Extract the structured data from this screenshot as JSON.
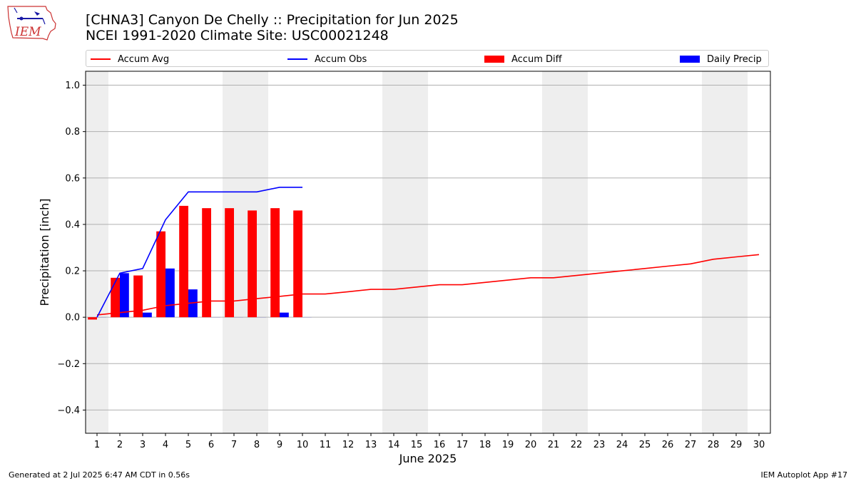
{
  "header": {
    "logo_text": "IEM",
    "title_line1": "[CHNA3] Canyon De Chelly :: Precipitation for Jun 2025",
    "title_line2": "NCEI 1991-2020 Climate Site: USC00021248"
  },
  "legend": {
    "accum_avg": "Accum Avg",
    "accum_obs": "Accum Obs",
    "accum_diff": "Accum Diff",
    "daily_precip": "Daily Precip"
  },
  "footer": {
    "generated": "Generated at 2 Jul 2025 6:47 AM CDT in 0.56s",
    "app": "IEM Autoplot App #17"
  },
  "colors": {
    "accum_avg": "#ff0000",
    "accum_obs": "#0000ff",
    "accum_diff": "#ff0000",
    "daily_precip": "#0000ff",
    "weekend_shade": "#eeeeee",
    "grid": "#b0b0b0"
  },
  "chart_data": {
    "type": "bar",
    "title": "[CHNA3] Canyon De Chelly :: Precipitation for Jun 2025",
    "subtitle": "NCEI 1991-2020 Climate Site: USC00021248",
    "xlabel": "June 2025",
    "ylabel": "Precipitation [inch]",
    "ylim": [
      -0.5,
      1.06
    ],
    "xlim": [
      0.5,
      30.5
    ],
    "yticks": [
      -0.4,
      -0.2,
      0.0,
      0.2,
      0.4,
      0.6,
      0.8,
      1.0
    ],
    "ytick_labels": [
      "−0.4",
      "−0.2",
      "0.0",
      "0.2",
      "0.4",
      "0.6",
      "0.8",
      "1.0"
    ],
    "x": [
      1,
      2,
      3,
      4,
      5,
      6,
      7,
      8,
      9,
      10,
      11,
      12,
      13,
      14,
      15,
      16,
      17,
      18,
      19,
      20,
      21,
      22,
      23,
      24,
      25,
      26,
      27,
      28,
      29,
      30
    ],
    "weekend_spans": [
      [
        1,
        1
      ],
      [
        7,
        8
      ],
      [
        14,
        15
      ],
      [
        21,
        22
      ],
      [
        28,
        29
      ]
    ],
    "grid": "y",
    "legend_position": "top",
    "series": [
      {
        "name": "Accum Avg",
        "kind": "line",
        "color": "#ff0000",
        "x": [
          1,
          2,
          3,
          4,
          5,
          6,
          7,
          8,
          9,
          10,
          11,
          12,
          13,
          14,
          15,
          16,
          17,
          18,
          19,
          20,
          21,
          22,
          23,
          24,
          25,
          26,
          27,
          28,
          29,
          30
        ],
        "values": [
          0.01,
          0.02,
          0.03,
          0.05,
          0.06,
          0.07,
          0.07,
          0.08,
          0.09,
          0.1,
          0.1,
          0.11,
          0.12,
          0.12,
          0.13,
          0.14,
          0.14,
          0.15,
          0.16,
          0.17,
          0.17,
          0.18,
          0.19,
          0.2,
          0.21,
          0.22,
          0.23,
          0.25,
          0.26,
          0.27
        ]
      },
      {
        "name": "Accum Obs",
        "kind": "line",
        "color": "#0000ff",
        "x": [
          1,
          2,
          3,
          4,
          5,
          6,
          7,
          8,
          9,
          10
        ],
        "values": [
          0.0,
          0.19,
          0.21,
          0.42,
          0.54,
          0.54,
          0.54,
          0.54,
          0.56,
          0.56
        ]
      },
      {
        "name": "Accum Diff",
        "kind": "bar",
        "color": "#ff0000",
        "x": [
          1,
          2,
          3,
          4,
          5,
          6,
          7,
          8,
          9,
          10
        ],
        "values": [
          -0.01,
          0.17,
          0.18,
          0.37,
          0.48,
          0.47,
          0.47,
          0.46,
          0.47,
          0.46
        ]
      },
      {
        "name": "Daily Precip",
        "kind": "bar",
        "color": "#0000ff",
        "x": [
          1,
          2,
          3,
          4,
          5,
          6,
          7,
          8,
          9,
          10
        ],
        "values": [
          0.0,
          0.19,
          0.02,
          0.21,
          0.12,
          0.0,
          0.0,
          0.0,
          0.02,
          0.0
        ]
      }
    ]
  }
}
